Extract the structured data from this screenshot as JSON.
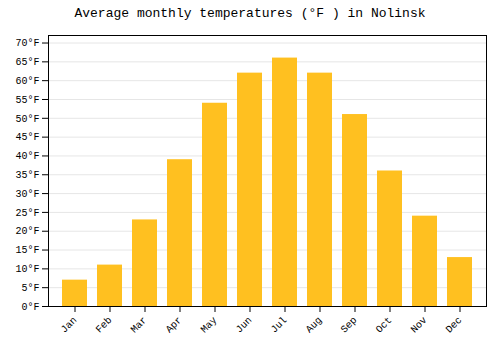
{
  "chart_data": {
    "type": "bar",
    "title": "Average monthly temperatures (°F ) in Nolinsk",
    "categories": [
      "Jan",
      "Feb",
      "Mar",
      "Apr",
      "May",
      "Jun",
      "Jul",
      "Aug",
      "Sep",
      "Oct",
      "Nov",
      "Dec"
    ],
    "values": [
      7,
      11,
      23,
      39,
      54,
      62,
      66,
      62,
      51,
      36,
      24,
      13
    ],
    "color": "#FFC020",
    "ylim": [
      0,
      72
    ],
    "yticks": [
      {
        "value": 0,
        "label": "0°F"
      },
      {
        "value": 5,
        "label": "5°F"
      },
      {
        "value": 10,
        "label": "10°F"
      },
      {
        "value": 15,
        "label": "15°F"
      },
      {
        "value": 20,
        "label": "20°F"
      },
      {
        "value": 25,
        "label": "25°F"
      },
      {
        "value": 30,
        "label": "30°F"
      },
      {
        "value": 35,
        "label": "35°F"
      },
      {
        "value": 40,
        "label": "40°F"
      },
      {
        "value": 45,
        "label": "45°F"
      },
      {
        "value": 50,
        "label": "50°F"
      },
      {
        "value": 55,
        "label": "55°F"
      },
      {
        "value": 60,
        "label": "60°F"
      },
      {
        "value": 65,
        "label": "65°F"
      },
      {
        "value": 70,
        "label": "70°F"
      }
    ],
    "grid": true
  }
}
